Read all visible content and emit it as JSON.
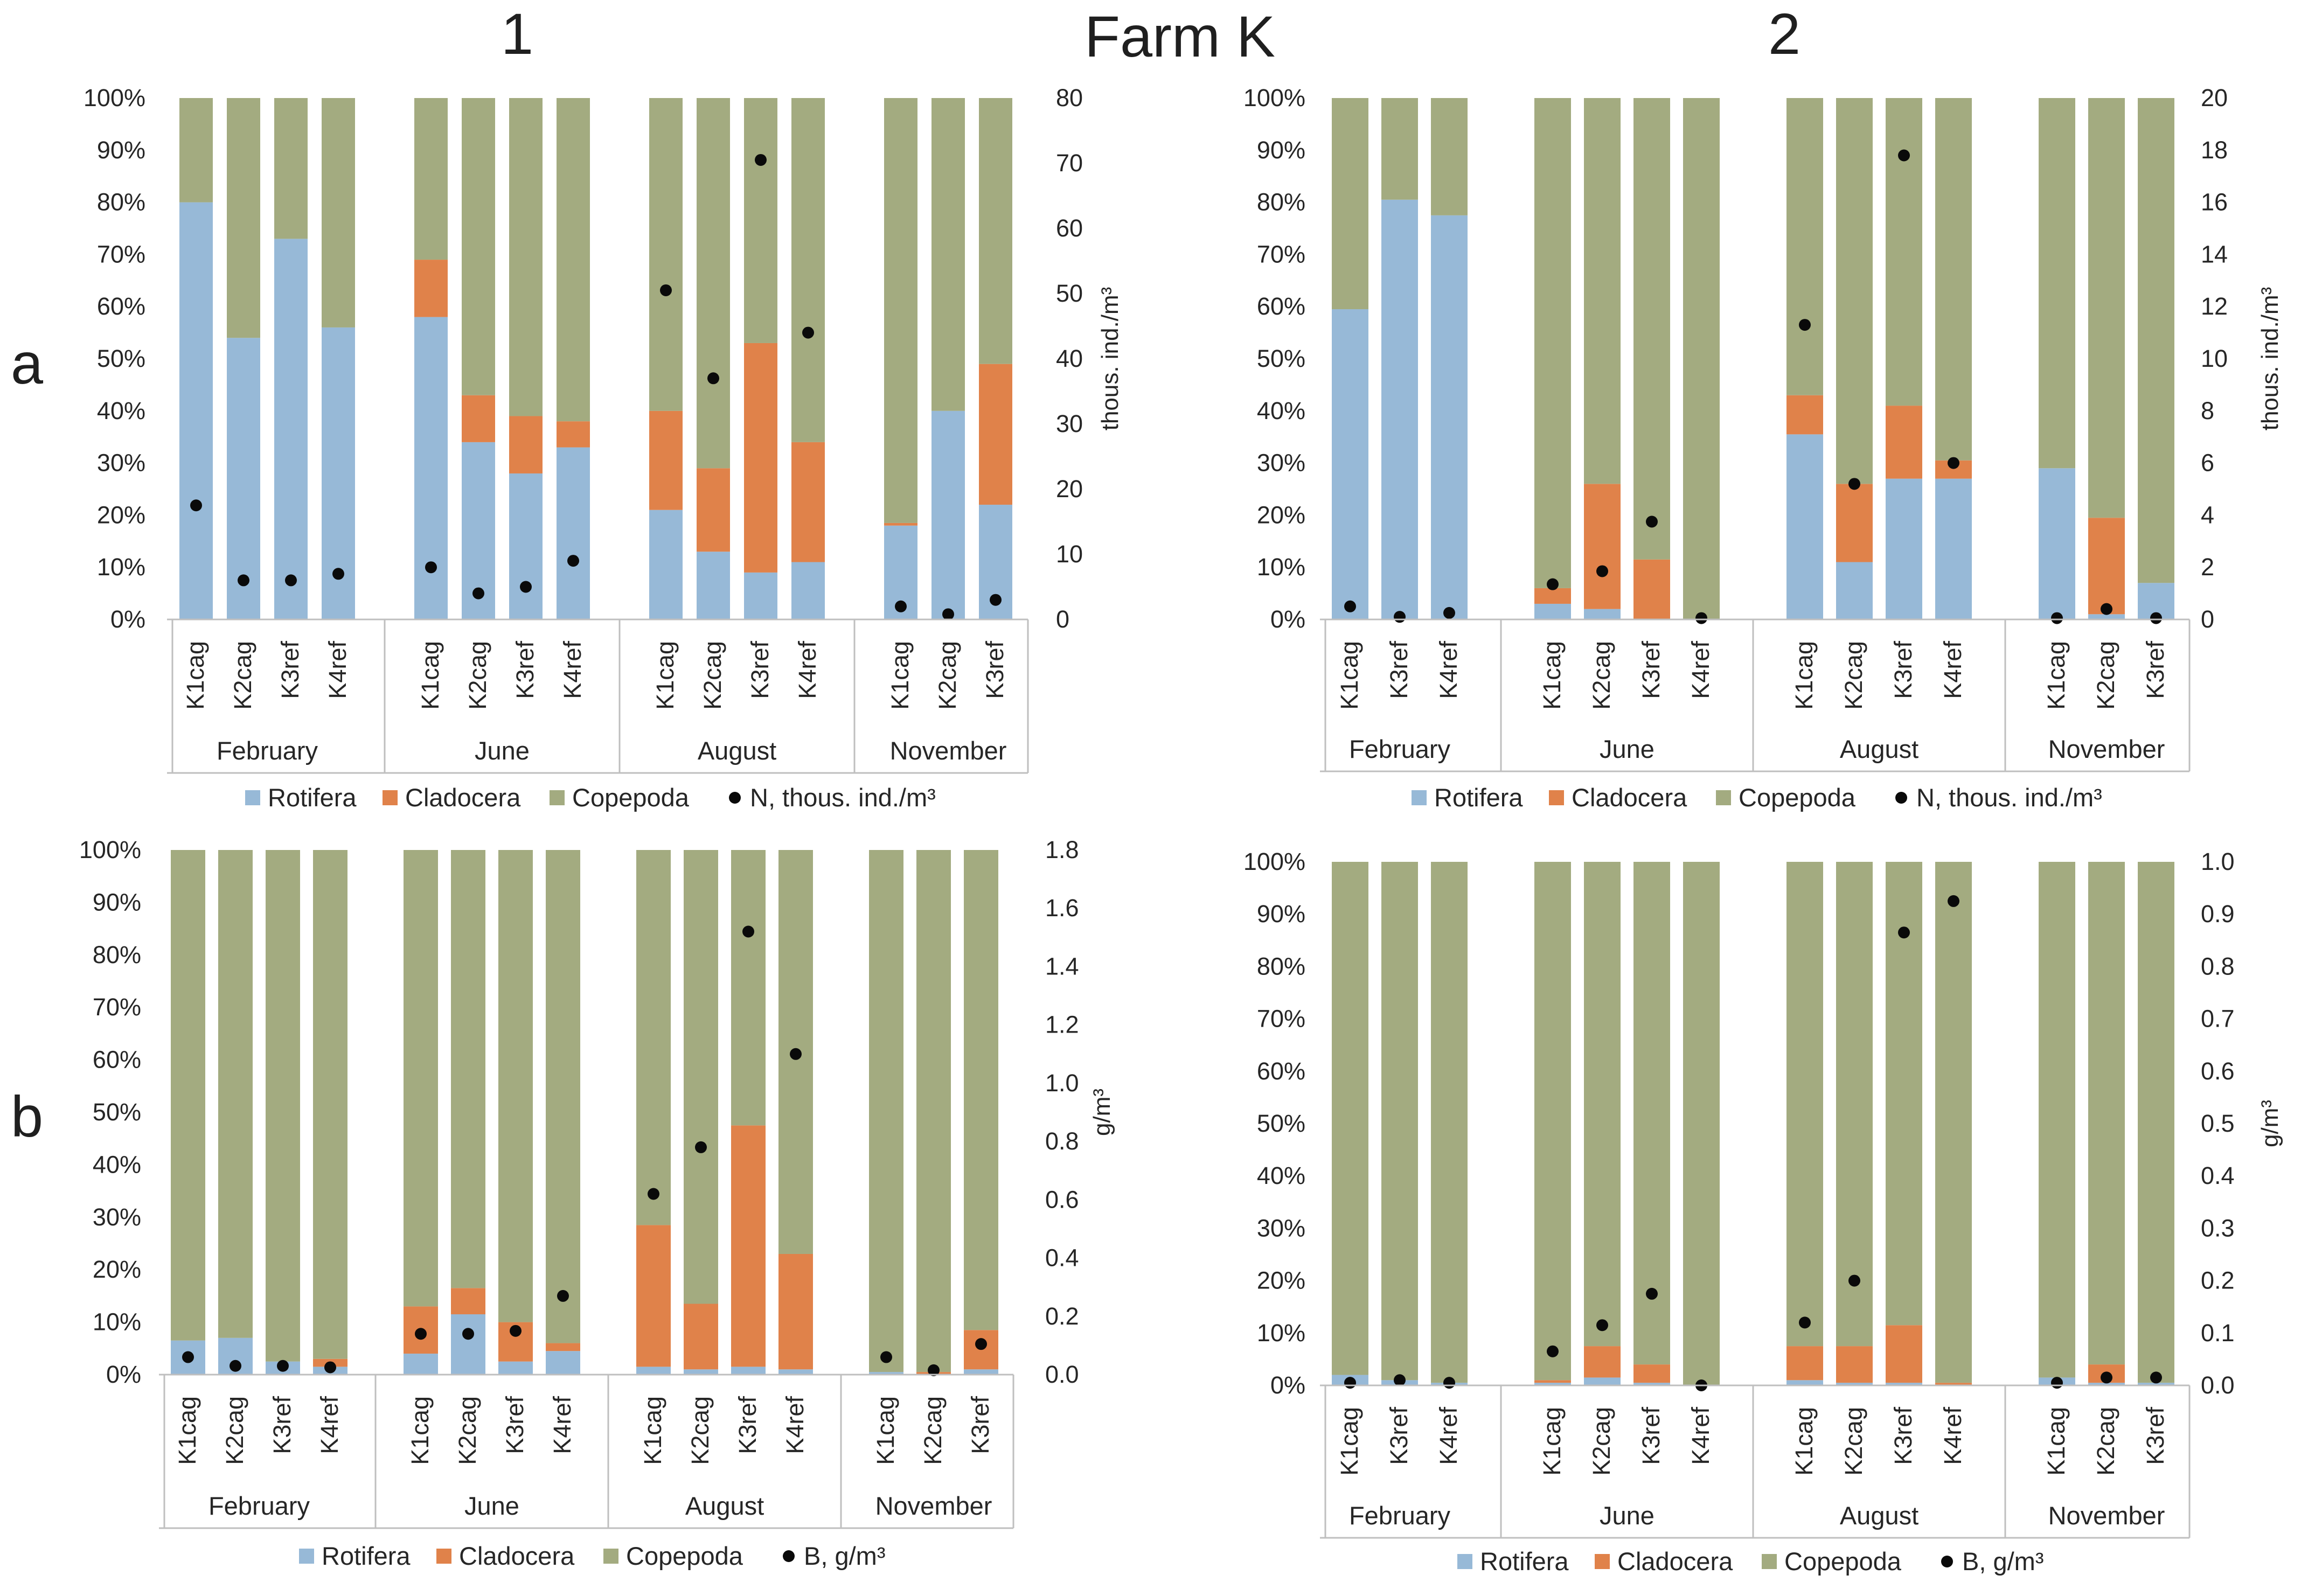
{
  "figure": {
    "title": "Farm K",
    "column_labels": [
      "1",
      "2"
    ],
    "row_labels": [
      "a",
      "b"
    ]
  },
  "colors": {
    "rotifera": "#97B9D7",
    "cladocera": "#E0824A",
    "copepoda": "#A3AB80",
    "point": "#0a0a0a",
    "axis": "#bfbfbf"
  },
  "chart_data": [
    {
      "id": "a1",
      "type": "bar",
      "stacked": true,
      "percent": true,
      "groups": [
        {
          "label": "February",
          "categories": [
            "K1cag",
            "K2cag",
            "K3ref",
            "K4ref"
          ]
        },
        {
          "label": "June",
          "categories": [
            "K1cag",
            "K2cag",
            "K3ref",
            "K4ref"
          ]
        },
        {
          "label": "August",
          "categories": [
            "K1cag",
            "K2cag",
            "K3ref",
            "K4ref"
          ]
        },
        {
          "label": "November",
          "categories": [
            "K1cag",
            "K2cag",
            "K3ref"
          ]
        }
      ],
      "series": [
        {
          "name": "Rotifera",
          "values": [
            80,
            54,
            73,
            56,
            58,
            34,
            28,
            33,
            21,
            13,
            9,
            11,
            18,
            40,
            22
          ]
        },
        {
          "name": "Cladocera",
          "values": [
            0,
            0,
            0,
            0,
            11,
            9,
            11,
            5,
            19,
            16,
            44,
            23,
            0.5,
            0,
            27
          ]
        },
        {
          "name": "Copepoda",
          "values": [
            20,
            46,
            27,
            44,
            31,
            57,
            61,
            62,
            60,
            71,
            47,
            66,
            81.5,
            60,
            51
          ]
        }
      ],
      "scatter": {
        "name": "N, thous. ind./m³",
        "values": [
          17.5,
          6,
          6,
          7,
          8,
          4,
          5,
          9,
          50.5,
          37,
          70.5,
          44,
          2,
          0.8,
          3
        ]
      },
      "yticks": [
        "0%",
        "10%",
        "20%",
        "30%",
        "40%",
        "50%",
        "60%",
        "70%",
        "80%",
        "90%",
        "100%"
      ],
      "y2lim": [
        0,
        80
      ],
      "y2ticks": [
        "0",
        "10",
        "20",
        "30",
        "40",
        "50",
        "60",
        "70",
        "80"
      ],
      "y2label": "thous. ind./m³",
      "legend": [
        "Rotifera",
        "Cladocera",
        "Copepoda",
        "N, thous. ind./m³"
      ]
    },
    {
      "id": "a2",
      "type": "bar",
      "stacked": true,
      "percent": true,
      "groups": [
        {
          "label": "February",
          "categories": [
            "K1cag",
            "K3ref",
            "K4ref"
          ]
        },
        {
          "label": "June",
          "categories": [
            "K1cag",
            "K2cag",
            "K3ref",
            "K4ref"
          ]
        },
        {
          "label": "August",
          "categories": [
            "K1cag",
            "K2cag",
            "K3ref",
            "K4ref"
          ]
        },
        {
          "label": "November",
          "categories": [
            "K1cag",
            "K2cag",
            "K3ref"
          ]
        }
      ],
      "series": [
        {
          "name": "Rotifera",
          "values": [
            59.5,
            80.5,
            77.5,
            3,
            2,
            0,
            0,
            35.5,
            11,
            27,
            27,
            29,
            1,
            7
          ]
        },
        {
          "name": "Cladocera",
          "values": [
            0,
            0,
            0,
            3,
            24,
            11.5,
            0,
            7.5,
            15,
            14,
            3.5,
            0,
            18.5,
            0
          ]
        },
        {
          "name": "Copepoda",
          "values": [
            40.5,
            19.5,
            22.5,
            94,
            74,
            88.5,
            100,
            57,
            74,
            59,
            69.5,
            71,
            80.5,
            93
          ]
        }
      ],
      "scatter": {
        "name": "N, thous. ind./m³",
        "values": [
          0.5,
          0.1,
          0.25,
          1.35,
          1.85,
          3.75,
          0.05,
          11.3,
          5.2,
          17.8,
          6,
          0.05,
          0.4,
          0.05
        ]
      },
      "yticks": [
        "0%",
        "10%",
        "20%",
        "30%",
        "40%",
        "50%",
        "60%",
        "70%",
        "80%",
        "90%",
        "100%"
      ],
      "y2lim": [
        0,
        20
      ],
      "y2ticks": [
        "0",
        "2",
        "4",
        "6",
        "8",
        "10",
        "12",
        "14",
        "16",
        "18",
        "20"
      ],
      "y2label": "thous. ind./m³",
      "legend": [
        "Rotifera",
        "Cladocera",
        "Copepoda",
        "N, thous. ind./m³"
      ]
    },
    {
      "id": "b1",
      "type": "bar",
      "stacked": true,
      "percent": true,
      "groups": [
        {
          "label": "February",
          "categories": [
            "K1cag",
            "K2cag",
            "K3ref",
            "K4ref"
          ]
        },
        {
          "label": "June",
          "categories": [
            "K1cag",
            "K2cag",
            "K3ref",
            "K4ref"
          ]
        },
        {
          "label": "August",
          "categories": [
            "K1cag",
            "K2cag",
            "K3ref",
            "K4ref"
          ]
        },
        {
          "label": "November",
          "categories": [
            "K1cag",
            "K2cag",
            "K3ref"
          ]
        }
      ],
      "series": [
        {
          "name": "Rotifera",
          "values": [
            6.5,
            7,
            2.5,
            1.5,
            4,
            11.5,
            2.5,
            4.5,
            1.5,
            1,
            1.5,
            1,
            0.5,
            0,
            1
          ]
        },
        {
          "name": "Cladocera",
          "values": [
            0,
            0,
            0,
            1.5,
            9,
            5,
            7.5,
            1.5,
            27,
            12.5,
            46,
            22,
            0,
            0.5,
            7.5
          ]
        },
        {
          "name": "Copepoda",
          "values": [
            93.5,
            93,
            97.5,
            97,
            87,
            83.5,
            90,
            94,
            71.5,
            86.5,
            52.5,
            77,
            99.5,
            99.5,
            91.5
          ]
        }
      ],
      "scatter": {
        "name": "B, g/m³",
        "values": [
          0.06,
          0.03,
          0.03,
          0.025,
          0.14,
          0.14,
          0.15,
          0.27,
          0.62,
          0.78,
          1.52,
          1.1,
          0.06,
          0.015,
          0.105
        ]
      },
      "yticks": [
        "0%",
        "10%",
        "20%",
        "30%",
        "40%",
        "50%",
        "60%",
        "70%",
        "80%",
        "90%",
        "100%"
      ],
      "y2lim": [
        0,
        1.8
      ],
      "y2ticks": [
        "0.0",
        "0.2",
        "0.4",
        "0.6",
        "0.8",
        "1.0",
        "1.2",
        "1.4",
        "1.6",
        "1.8"
      ],
      "y2label": "g/m³",
      "legend": [
        "Rotifera",
        "Cladocera",
        "Copepoda",
        "B, g/m³"
      ]
    },
    {
      "id": "b2",
      "type": "bar",
      "stacked": true,
      "percent": true,
      "groups": [
        {
          "label": "February",
          "categories": [
            "K1cag",
            "K3ref",
            "K4ref"
          ]
        },
        {
          "label": "June",
          "categories": [
            "K1cag",
            "K2cag",
            "K3ref",
            "K4ref"
          ]
        },
        {
          "label": "August",
          "categories": [
            "K1cag",
            "K2cag",
            "K3ref",
            "K4ref"
          ]
        },
        {
          "label": "November",
          "categories": [
            "K1cag",
            "K2cag",
            "K3ref"
          ]
        }
      ],
      "series": [
        {
          "name": "Rotifera",
          "values": [
            2,
            1,
            0.5,
            0.5,
            1.5,
            0.5,
            0,
            1,
            0.5,
            0.5,
            0,
            1.5,
            0.5,
            0.5
          ]
        },
        {
          "name": "Cladocera",
          "values": [
            0,
            0,
            0,
            0.5,
            6,
            3.5,
            0,
            6.5,
            7,
            11,
            0.5,
            0,
            3.5,
            0
          ]
        },
        {
          "name": "Copepoda",
          "values": [
            98,
            99,
            99.5,
            99,
            92.5,
            96,
            100,
            92.5,
            92.5,
            88.5,
            99.5,
            98.5,
            96,
            99.5
          ]
        }
      ],
      "scatter": {
        "name": "B, g/m³",
        "values": [
          0.005,
          0.01,
          0.005,
          0.065,
          0.115,
          0.175,
          0.0,
          0.12,
          0.2,
          0.865,
          0.925,
          0.005,
          0.015,
          0.015
        ]
      },
      "yticks": [
        "0%",
        "10%",
        "20%",
        "30%",
        "40%",
        "50%",
        "60%",
        "70%",
        "80%",
        "90%",
        "100%"
      ],
      "y2lim": [
        0,
        1.0
      ],
      "y2ticks": [
        "0.0",
        "0.1",
        "0.2",
        "0.3",
        "0.4",
        "0.5",
        "0.6",
        "0.7",
        "0.8",
        "0.9",
        "1.0"
      ],
      "y2label": "g/m³",
      "legend": [
        "Rotifera",
        "Cladocera",
        "Copepoda",
        "B, g/m³"
      ]
    }
  ]
}
